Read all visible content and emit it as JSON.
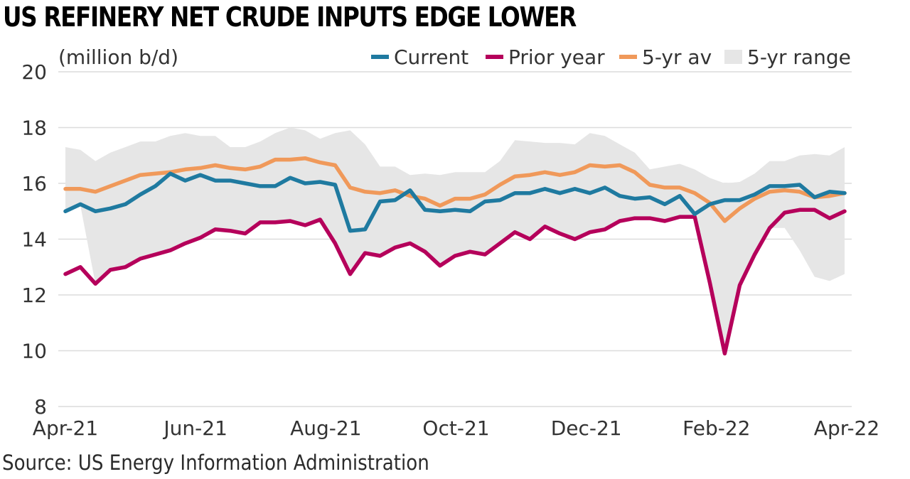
{
  "title": "US REFINERY NET CRUDE INPUTS EDGE LOWER",
  "source": "Source: US Energy Information Administration",
  "chart_data": {
    "type": "line",
    "ylabel": "(million b/d)",
    "ylim": [
      8,
      20
    ],
    "yticks": [
      8,
      10,
      12,
      14,
      16,
      18,
      20
    ],
    "xticks": [
      "Apr-21",
      "Jun-21",
      "Aug-21",
      "Oct-21",
      "Dec-21",
      "Feb-22",
      "Apr-22"
    ],
    "grid": "horizontal",
    "legend_position": "top",
    "colors": {
      "current": "#1f7aa0",
      "prior": "#b5005b",
      "avg": "#f0995a",
      "range": "#e6e6e6",
      "grid": "#dcdcdc"
    },
    "series": [
      {
        "name": "Current",
        "values": [
          15.0,
          15.25,
          15.0,
          15.1,
          15.25,
          15.6,
          15.9,
          16.35,
          16.1,
          16.3,
          16.1,
          16.1,
          16.0,
          15.9,
          15.9,
          16.2,
          16.0,
          16.05,
          15.95,
          14.3,
          14.35,
          15.35,
          15.4,
          15.75,
          15.05,
          15.0,
          15.05,
          15.0,
          15.35,
          15.4,
          15.65,
          15.65,
          15.8,
          15.65,
          15.8,
          15.65,
          15.85,
          15.55,
          15.45,
          15.5,
          15.25,
          15.55,
          14.9,
          15.25,
          15.4,
          15.4,
          15.6,
          15.9,
          15.9,
          15.95,
          15.5,
          15.7,
          15.65
        ]
      },
      {
        "name": "Prior year",
        "values": [
          12.75,
          13.0,
          12.4,
          12.9,
          13.0,
          13.3,
          13.45,
          13.6,
          13.85,
          14.05,
          14.35,
          14.3,
          14.2,
          14.6,
          14.6,
          14.65,
          14.5,
          14.7,
          13.85,
          12.75,
          13.5,
          13.4,
          13.7,
          13.85,
          13.55,
          13.05,
          13.4,
          13.55,
          13.45,
          13.85,
          14.25,
          14.0,
          14.45,
          14.2,
          14.0,
          14.25,
          14.35,
          14.65,
          14.75,
          14.75,
          14.65,
          14.8,
          14.8,
          12.45,
          9.9,
          12.35,
          13.45,
          14.4,
          14.95,
          15.05,
          15.05,
          14.75,
          15.0
        ]
      },
      {
        "name": "5-yr av",
        "values": [
          15.8,
          15.8,
          15.7,
          15.9,
          16.1,
          16.3,
          16.35,
          16.4,
          16.5,
          16.55,
          16.65,
          16.55,
          16.5,
          16.6,
          16.85,
          16.85,
          16.9,
          16.75,
          16.65,
          15.85,
          15.7,
          15.65,
          15.75,
          15.55,
          15.45,
          15.2,
          15.45,
          15.45,
          15.6,
          15.95,
          16.25,
          16.3,
          16.4,
          16.3,
          16.4,
          16.65,
          16.6,
          16.65,
          16.4,
          15.95,
          15.85,
          15.85,
          15.65,
          15.3,
          14.65,
          15.1,
          15.45,
          15.7,
          15.75,
          15.7,
          15.5,
          15.55,
          15.65
        ]
      },
      {
        "name": "5-yr range",
        "upper": [
          17.3,
          17.2,
          16.8,
          17.1,
          17.3,
          17.5,
          17.5,
          17.7,
          17.8,
          17.7,
          17.7,
          17.3,
          17.3,
          17.5,
          17.8,
          18.0,
          17.9,
          17.6,
          17.8,
          17.9,
          17.4,
          16.6,
          16.6,
          16.3,
          16.35,
          16.3,
          16.4,
          16.4,
          16.4,
          16.8,
          17.55,
          17.5,
          17.45,
          17.45,
          17.4,
          17.8,
          17.7,
          17.4,
          17.1,
          16.5,
          16.6,
          16.7,
          16.5,
          16.2,
          16.0,
          16.05,
          16.35,
          16.8,
          16.8,
          17.0,
          17.05,
          17.0,
          17.3
        ],
        "lower": [
          15.0,
          15.2,
          12.4,
          12.9,
          13.0,
          13.3,
          13.45,
          13.6,
          13.85,
          14.05,
          14.3,
          14.3,
          14.2,
          14.55,
          14.6,
          14.65,
          14.5,
          14.6,
          13.85,
          12.75,
          13.5,
          13.4,
          13.7,
          13.85,
          13.55,
          13.05,
          13.4,
          13.55,
          13.45,
          13.85,
          14.25,
          14.0,
          14.45,
          14.2,
          14.0,
          14.25,
          14.35,
          14.65,
          14.75,
          14.75,
          14.65,
          14.8,
          14.8,
          12.45,
          9.9,
          12.35,
          13.45,
          14.4,
          14.4,
          13.6,
          12.65,
          12.5,
          12.75
        ]
      }
    ]
  }
}
